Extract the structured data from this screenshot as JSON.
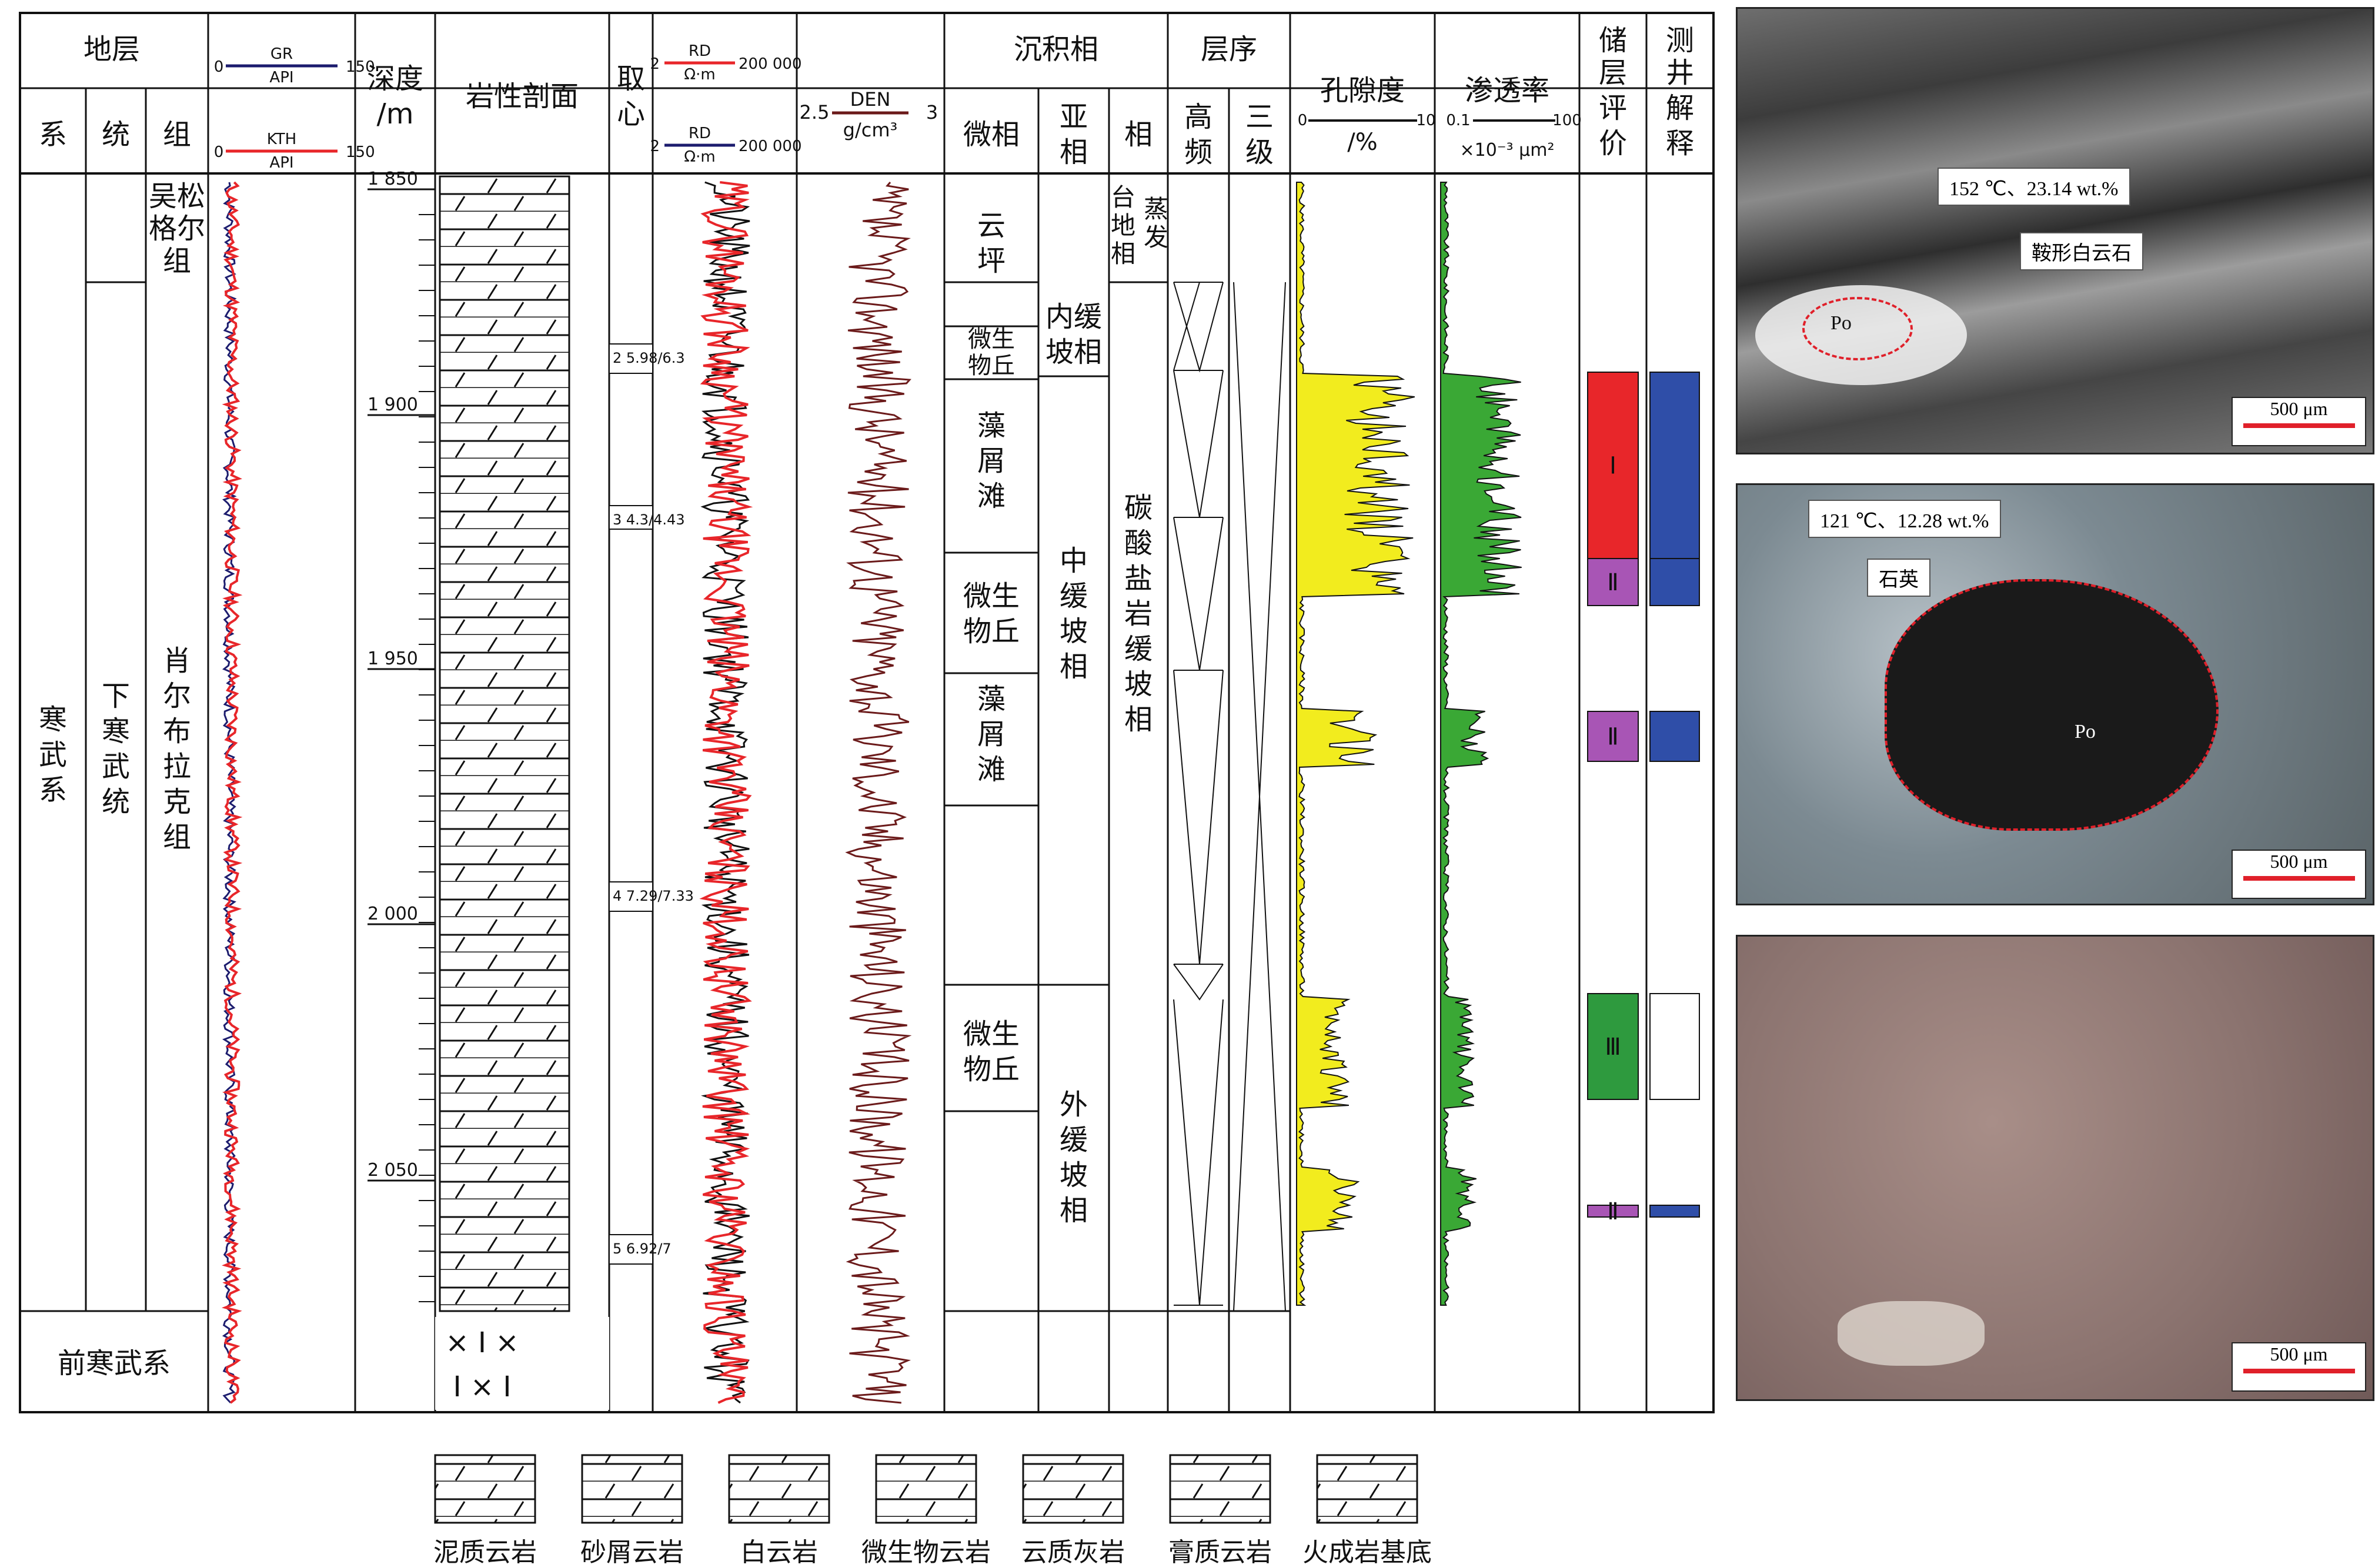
{
  "header": {
    "stratum": "地层",
    "xi": "系",
    "tong": "统",
    "zu": "组",
    "gr_top": "GR",
    "gr_bottom": "API",
    "gr_min": "0",
    "gr_max": "150",
    "kth_top": "KTH",
    "kth_bottom": "API",
    "kth_min": "0",
    "kth_max": "150",
    "depth_l1": "深度",
    "depth_l2": "/m",
    "lithology": "岩性剖面",
    "core_l1": "取",
    "core_l2": "心",
    "rd1_top": "RD",
    "rd1_bottom": "Ω·m",
    "rd1_min": "2",
    "rd1_max": "200 000",
    "rd2_top": "RD",
    "rd2_bottom": "Ω·m",
    "rd2_min": "2",
    "rd2_max": "200 000",
    "den_min": "2.5",
    "den_top": "DEN",
    "den_bottom": "g/cm³",
    "den_max": "3",
    "facies": "沉积相",
    "microfacies": "微相",
    "subfacies_l1": "亚",
    "subfacies_l2": "相",
    "facies_col": "相",
    "sequence": "层序",
    "hf_l1": "高",
    "hf_l2": "频",
    "l3_l1": "三",
    "l3_l2": "级",
    "porosity": "孔隙度",
    "porosity_min": "0",
    "porosity_unit": "/%",
    "porosity_max": "10",
    "perm": "渗透率",
    "perm_min": "0.1",
    "perm_max": "100",
    "perm_unit": "×10⁻³ μm²",
    "eval_l1": "储",
    "eval_l2": "层",
    "eval_l3": "评",
    "eval_l4": "价",
    "interp_l1": "测",
    "interp_l2": "井",
    "interp_l3": "解",
    "interp_l4": "释"
  },
  "strat": {
    "system": "寒武系",
    "series": "下寒武统",
    "form_upper": "吴松格尔组",
    "form_lower": "肖尔布拉克组",
    "pre": "前寒武系"
  },
  "depth_ticks": [
    "1 850",
    "1 900",
    "1 950",
    "2 000",
    "2 050"
  ],
  "cores": [
    {
      "num": "2",
      "top": "5.98",
      "bot": "6.3"
    },
    {
      "num": "3",
      "top": "4.3",
      "bot": "4.43"
    },
    {
      "num": "4",
      "top": "7.29",
      "bot": "7.33"
    },
    {
      "num": "5",
      "top": "6.92",
      "bot": "7"
    }
  ],
  "microfacies": [
    "云坪",
    "微生物丘",
    "藻屑滩",
    "微生物丘",
    "藻屑滩",
    "微生物丘"
  ],
  "subfacies": [
    "内缓坡相",
    "中缓坡相",
    "外缓坡相"
  ],
  "facies": [
    "蒸发台地相",
    "碳酸盐岩缓坡相"
  ],
  "reservoir_eval": [
    "Ⅰ",
    "Ⅱ",
    "Ⅱ",
    "Ⅲ",
    "Ⅱ"
  ],
  "legend": [
    "泥质云岩",
    "砂屑云岩",
    "白云岩",
    "微生物云岩",
    "云质灰岩",
    "膏质云岩",
    "火成岩基底"
  ],
  "photos": {
    "p1_note": "152 ℃、23.14 wt.%",
    "p1_label": "鞍形白云石",
    "p1_po": "Po",
    "p2_note": "121 ℃、12.28 wt.%",
    "p2_label": "石英",
    "p2_po": "Po",
    "scale": "500 μm"
  },
  "colors": {
    "gr": "#1c1c6e",
    "kth": "#e8262a",
    "rd": "#e8262a",
    "den": "#6b1a1a",
    "porosity_fill": "#f2ec1e",
    "perm_fill": "#3aa835",
    "eval_I": "#e8262a",
    "eval_II": "#a855b5",
    "eval_III": "#2e9a3e",
    "interp": "#2f4ea8"
  }
}
